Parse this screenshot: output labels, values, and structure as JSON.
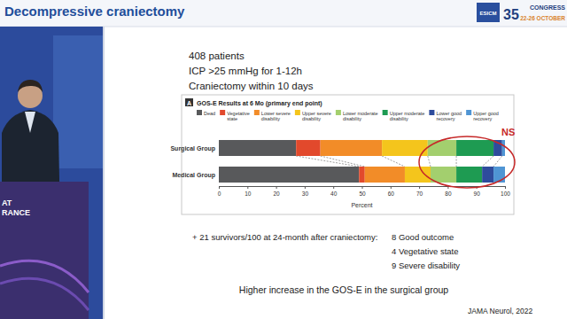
{
  "header": {
    "title": "Decompressive craniectomy",
    "logo": "ESICM",
    "congress_number": "35",
    "congress": "CONGRESS",
    "dates": "22-26 OCTOBER"
  },
  "speaker_panel": {
    "texts": [
      "AT",
      "RANCE"
    ]
  },
  "slide": {
    "bullets": [
      "408 patients",
      "ICP >25 mmHg for 1-12h",
      "Craniectomy within 10 days"
    ],
    "survivors_line": "+ 21 survivors/100 at 24-month after craniectomy:",
    "outcomes": [
      "8 Good outcome",
      "4 Vegetative state",
      "9 Severe disability"
    ],
    "conclusion": "Higher increase in the GOS-E in the surgical group",
    "reference": "JAMA Neurol, 2022"
  },
  "chart_data": {
    "type": "bar",
    "orientation": "horizontal",
    "stacked": true,
    "title": "GOS-E Results at 6 Mo (primary end point)",
    "annotations": [
      "A",
      "NS"
    ],
    "xlabel": "Percent",
    "categories": [
      "Surgical Group",
      "Medical Group"
    ],
    "series": [
      {
        "name": "Dead",
        "color": "#58595b",
        "values": [
          27,
          49
        ]
      },
      {
        "name": "Vegetative state",
        "color": "#e2492c",
        "values": [
          8.5,
          2
        ]
      },
      {
        "name": "Lower severe disability",
        "color": "#f28c28",
        "values": [
          21.5,
          14
        ]
      },
      {
        "name": "Upper severe disability",
        "color": "#f4c51c",
        "values": [
          16,
          9
        ]
      },
      {
        "name": "Lower moderate disability",
        "color": "#a3cf6e",
        "values": [
          10,
          9
        ]
      },
      {
        "name": "Upper moderate disability",
        "color": "#1e9b52",
        "values": [
          13,
          9
        ]
      },
      {
        "name": "Lower good recovery",
        "color": "#2e4c9c",
        "values": [
          3,
          4
        ]
      },
      {
        "name": "Upper good recovery",
        "color": "#4f95d4",
        "values": [
          1,
          4
        ]
      }
    ],
    "xlim": [
      0,
      100
    ],
    "xticks": [
      0,
      10,
      20,
      30,
      40,
      50,
      60,
      70,
      80,
      90,
      100
    ],
    "legend": "top",
    "grid": false
  }
}
